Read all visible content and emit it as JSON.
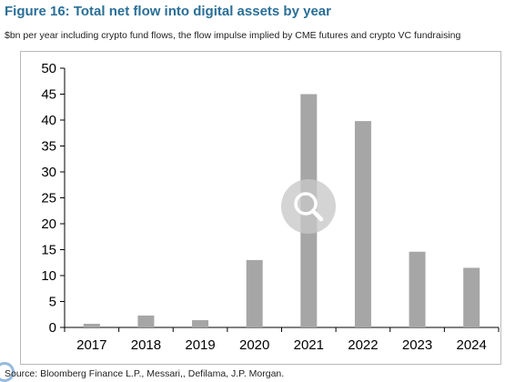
{
  "figure": {
    "title": "Figure 16: Total net flow into digital assets by year",
    "subtitle": "$bn per year including crypto fund flows, the flow impulse implied by CME futures and crypto VC fundraising",
    "source": "Source: Bloomberg Finance L.P., Messari,, Defilama, J.P. Morgan."
  },
  "colors": {
    "title": "#2a6f97",
    "bar": "#a6a6a6",
    "axis": "#000000"
  },
  "overlay": {
    "icon": "search-icon"
  },
  "chart_data": {
    "type": "bar",
    "title": "Figure 16: Total net flow into digital assets by year",
    "xlabel": "",
    "ylabel": "",
    "categories": [
      "2017",
      "2018",
      "2019",
      "2020",
      "2021",
      "2022",
      "2023",
      "2024"
    ],
    "values": [
      0.7,
      2.3,
      1.4,
      13,
      45,
      39.8,
      14.6,
      11.5
    ],
    "ylim": [
      0,
      50
    ],
    "yticks": [
      0,
      5,
      10,
      15,
      20,
      25,
      30,
      35,
      40,
      45,
      50
    ],
    "grid": false,
    "legend": "none"
  }
}
